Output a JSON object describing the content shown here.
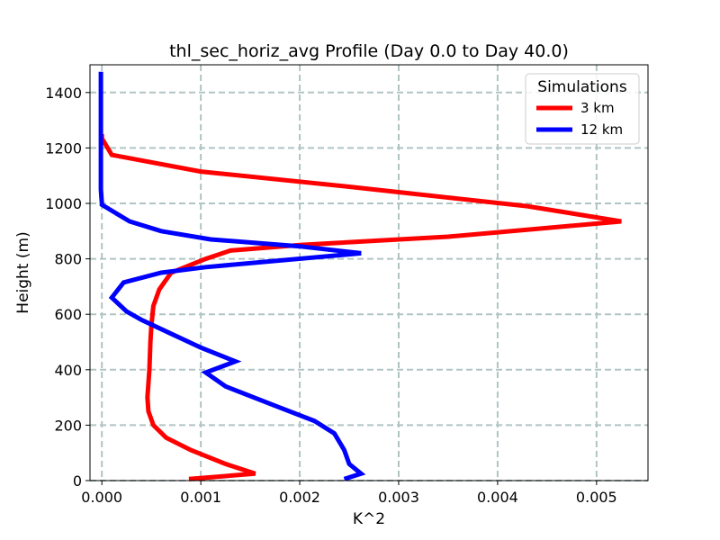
{
  "chart_data": {
    "type": "line",
    "title": "thl_sec_horiz_avg Profile (Day 0.0 to Day 40.0)",
    "xlabel": "K^2",
    "ylabel": "Height (m)",
    "xlim": [
      -0.00012,
      0.00552
    ],
    "ylim": [
      0,
      1500
    ],
    "xticks": [
      0.0,
      0.001,
      0.002,
      0.003,
      0.004,
      0.005
    ],
    "xtick_labels": [
      "0.000",
      "0.001",
      "0.002",
      "0.003",
      "0.004",
      "0.005"
    ],
    "yticks": [
      0,
      200,
      400,
      600,
      800,
      1000,
      1200,
      1400
    ],
    "ytick_labels": [
      "0",
      "200",
      "400",
      "600",
      "800",
      "1000",
      "1200",
      "1400"
    ],
    "grid": true,
    "legend": {
      "title": "Simulations",
      "position": "top-right"
    },
    "series": [
      {
        "name": "3 km",
        "color": "#ff0000",
        "points": [
          [
            0.00088,
            6
          ],
          [
            0.00155,
            25
          ],
          [
            0.00125,
            60
          ],
          [
            0.0009,
            110
          ],
          [
            0.00065,
            155
          ],
          [
            0.00052,
            200
          ],
          [
            0.00047,
            250
          ],
          [
            0.00046,
            300
          ],
          [
            0.00048,
            400
          ],
          [
            0.00049,
            500
          ],
          [
            0.0005,
            560
          ],
          [
            0.00052,
            630
          ],
          [
            0.00058,
            690
          ],
          [
            0.0007,
            750
          ],
          [
            0.00105,
            800
          ],
          [
            0.0013,
            830
          ],
          [
            0.002,
            850
          ],
          [
            0.0035,
            880
          ],
          [
            0.00525,
            935
          ],
          [
            0.0043,
            990
          ],
          [
            0.0025,
            1060
          ],
          [
            0.001,
            1115
          ],
          [
            0.0001,
            1175
          ],
          [
            0.0,
            1235
          ],
          [
            0.0,
            1250
          ]
        ]
      },
      {
        "name": "12 km",
        "color": "#0000ff",
        "points": [
          [
            0.00245,
            6
          ],
          [
            0.00262,
            25
          ],
          [
            0.0025,
            60
          ],
          [
            0.00245,
            110
          ],
          [
            0.00235,
            170
          ],
          [
            0.00215,
            215
          ],
          [
            0.00175,
            270
          ],
          [
            0.00125,
            340
          ],
          [
            0.00105,
            390
          ],
          [
            0.00135,
            430
          ],
          [
            0.001,
            480
          ],
          [
            0.0007,
            530
          ],
          [
            0.0004,
            580
          ],
          [
            0.00025,
            610
          ],
          [
            0.0001,
            660
          ],
          [
            0.00022,
            715
          ],
          [
            0.0006,
            750
          ],
          [
            0.00105,
            770
          ],
          [
            0.00262,
            820
          ],
          [
            0.002,
            845
          ],
          [
            0.0011,
            870
          ],
          [
            0.0006,
            900
          ],
          [
            0.00028,
            935
          ],
          [
            0.0,
            995
          ],
          [
            0.0,
            1000
          ],
          [
            -1e-05,
            1050
          ],
          [
            -1e-05,
            1200
          ],
          [
            -1e-05,
            1400
          ],
          [
            -1e-05,
            1475
          ]
        ]
      }
    ]
  }
}
